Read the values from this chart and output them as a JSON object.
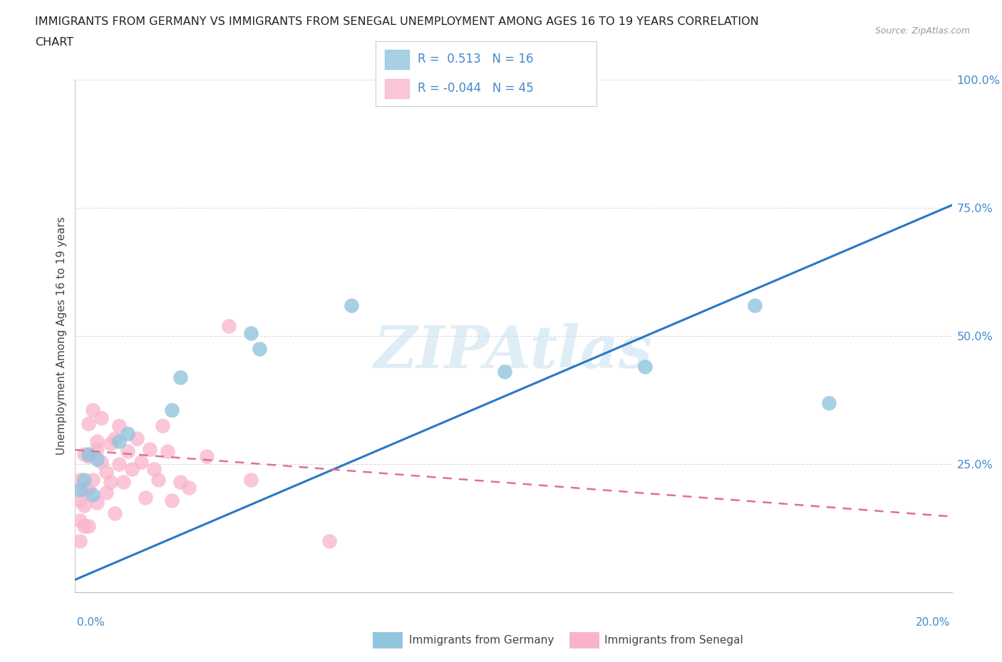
{
  "title_line1": "IMMIGRANTS FROM GERMANY VS IMMIGRANTS FROM SENEGAL UNEMPLOYMENT AMONG AGES 16 TO 19 YEARS CORRELATION",
  "title_line2": "CHART",
  "source": "Source: ZipAtlas.com",
  "ylabel": "Unemployment Among Ages 16 to 19 years",
  "r_germany": 0.513,
  "n_germany": 16,
  "r_senegal": -0.044,
  "n_senegal": 45,
  "germany_color": "#92c5de",
  "senegal_color": "#f9b4cb",
  "germany_trend_color": "#2878c8",
  "senegal_trend_color": "#e07090",
  "watermark": "ZIPAtlas",
  "xlim": [
    0.0,
    0.2
  ],
  "ylim": [
    0.0,
    1.0
  ],
  "yticks": [
    0.0,
    0.25,
    0.5,
    0.75,
    1.0
  ],
  "ytick_labels": [
    "",
    "25.0%",
    "50.0%",
    "75.0%",
    "100.0%"
  ],
  "germany_trend_x0": 0.0,
  "germany_trend_y0": 0.025,
  "germany_trend_x1": 0.2,
  "germany_trend_y1": 0.755,
  "senegal_trend_x0": 0.0,
  "senegal_trend_y0": 0.278,
  "senegal_trend_x1": 0.2,
  "senegal_trend_y1": 0.148,
  "germany_scatter_x": [
    0.001,
    0.002,
    0.003,
    0.004,
    0.005,
    0.01,
    0.012,
    0.022,
    0.024,
    0.04,
    0.042,
    0.063,
    0.098,
    0.13,
    0.155,
    0.172
  ],
  "germany_scatter_y": [
    0.2,
    0.22,
    0.27,
    0.19,
    0.26,
    0.295,
    0.31,
    0.355,
    0.42,
    0.505,
    0.475,
    0.56,
    0.43,
    0.44,
    0.56,
    0.37
  ],
  "senegal_scatter_x": [
    0.001,
    0.001,
    0.001,
    0.001,
    0.002,
    0.002,
    0.002,
    0.002,
    0.003,
    0.003,
    0.003,
    0.003,
    0.004,
    0.004,
    0.005,
    0.005,
    0.005,
    0.006,
    0.006,
    0.007,
    0.007,
    0.008,
    0.008,
    0.009,
    0.009,
    0.01,
    0.01,
    0.011,
    0.012,
    0.013,
    0.014,
    0.015,
    0.016,
    0.017,
    0.018,
    0.019,
    0.02,
    0.021,
    0.022,
    0.024,
    0.026,
    0.03,
    0.035,
    0.04,
    0.058
  ],
  "senegal_scatter_y": [
    0.18,
    0.22,
    0.14,
    0.1,
    0.2,
    0.17,
    0.27,
    0.13,
    0.265,
    0.33,
    0.2,
    0.13,
    0.355,
    0.22,
    0.295,
    0.28,
    0.175,
    0.255,
    0.34,
    0.235,
    0.195,
    0.29,
    0.215,
    0.3,
    0.155,
    0.325,
    0.25,
    0.215,
    0.275,
    0.24,
    0.3,
    0.255,
    0.185,
    0.28,
    0.24,
    0.22,
    0.325,
    0.275,
    0.18,
    0.215,
    0.205,
    0.265,
    0.52,
    0.22,
    0.1
  ],
  "legend_text_color": "#4488cc",
  "background_color": "#ffffff",
  "grid_color": "#dddddd"
}
